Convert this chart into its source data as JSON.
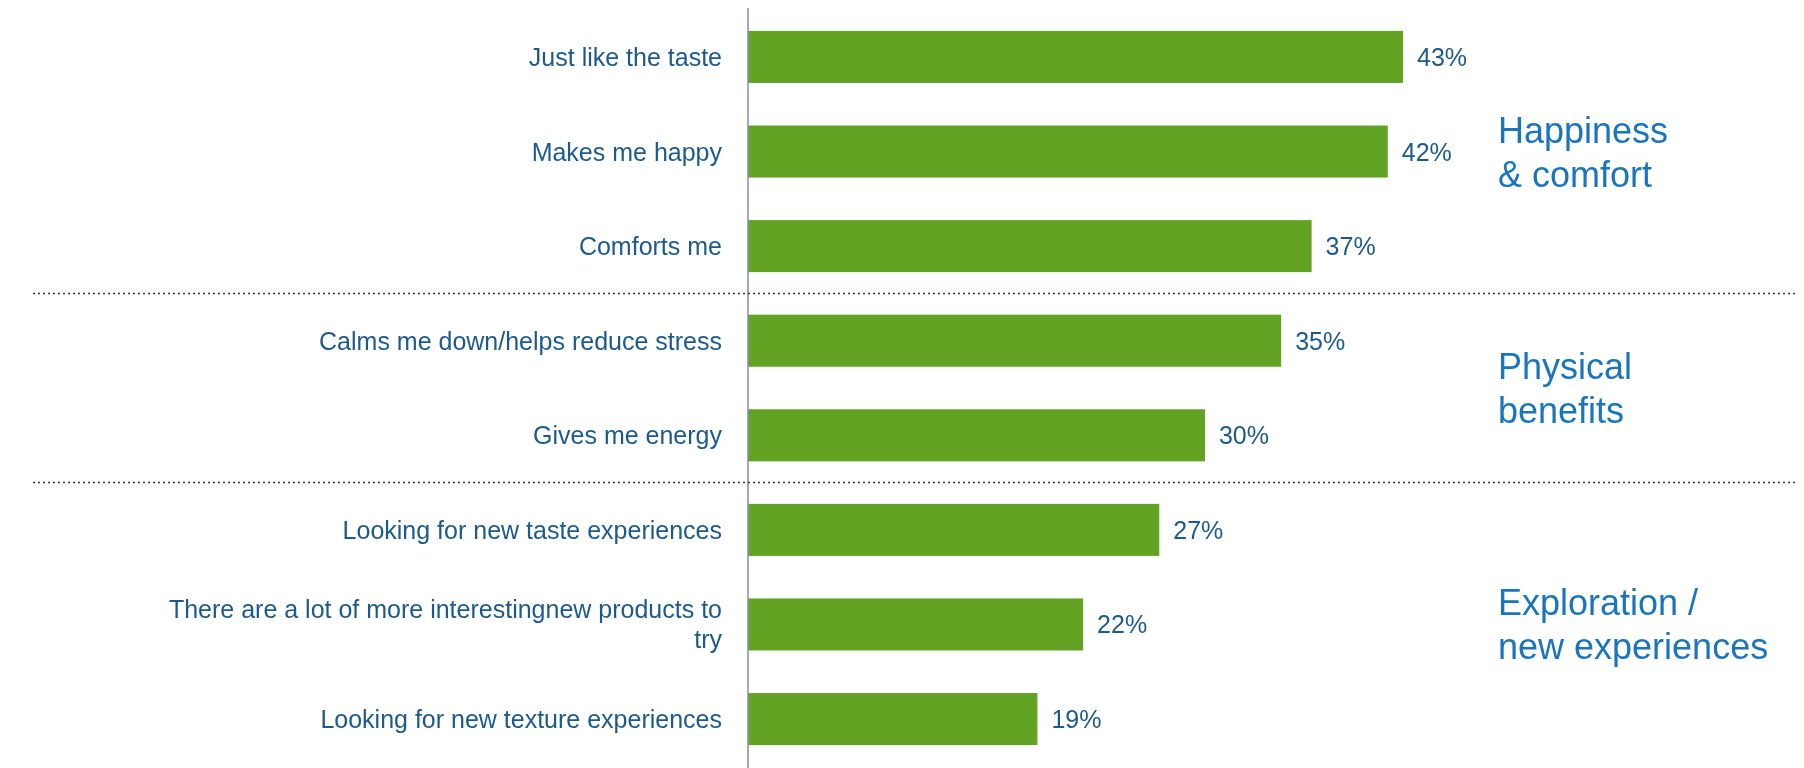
{
  "chart_data": {
    "type": "bar",
    "orientation": "horizontal",
    "categories": [
      "Just like the taste",
      "Makes me happy",
      "Comforts me",
      "Calms me down/helps reduce stress",
      "Gives me energy",
      "Looking for new taste experiences",
      "There are a lot of more interestingnew products to try",
      "Looking for new texture experiences"
    ],
    "values": [
      43,
      42,
      37,
      35,
      30,
      27,
      22,
      19
    ],
    "value_labels": [
      "43%",
      "42%",
      "37%",
      "35%",
      "30%",
      "27%",
      "22%",
      "19%"
    ],
    "color": "#62a323",
    "annotations": [
      "Happiness\n& comfort",
      "Physical\nbenefits",
      "Exploration /\nnew experiences"
    ]
  }
}
